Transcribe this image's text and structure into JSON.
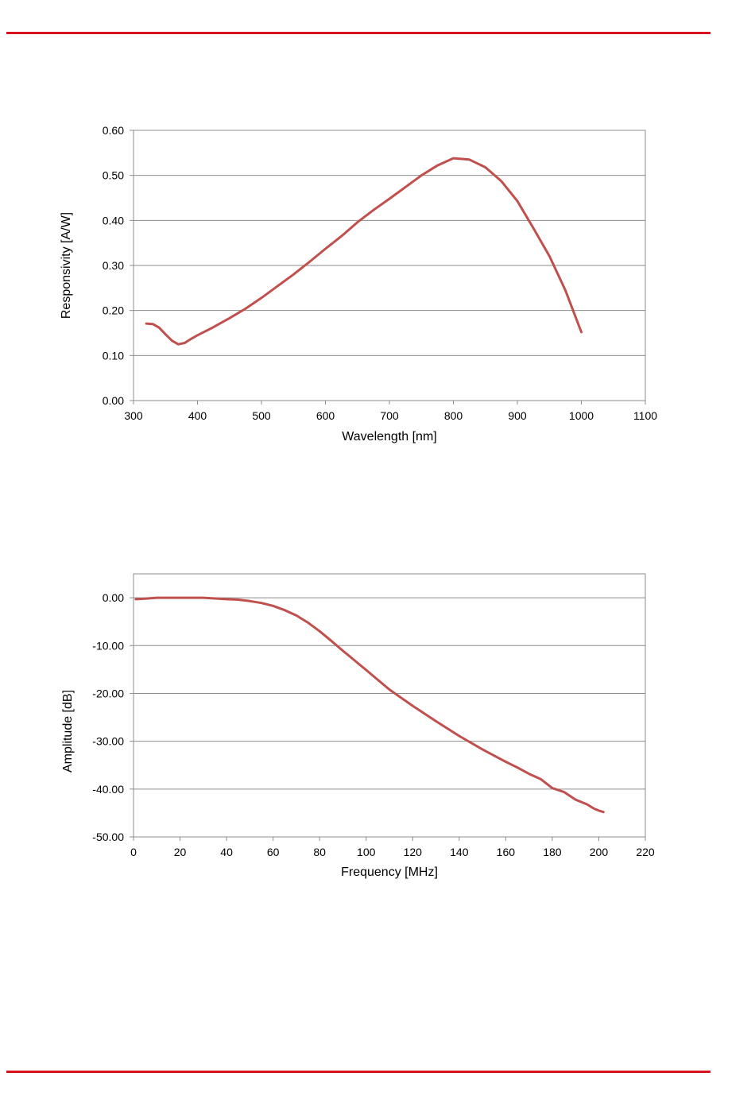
{
  "colors": {
    "rule": "#d9141e",
    "curve": "#c0504d",
    "grid": "#8c8c8c",
    "frame": "#8c8c8c"
  },
  "chart_data": [
    {
      "type": "line",
      "xlabel": "Wavelength [nm]",
      "ylabel": "Responsivity [A/W]",
      "xlim": [
        300,
        1100
      ],
      "ylim": [
        0,
        0.6
      ],
      "x_ticks": [
        300,
        400,
        500,
        600,
        700,
        800,
        900,
        1000,
        1100
      ],
      "x_tick_labels": [
        "300",
        "400",
        "500",
        "600",
        "700",
        "800",
        "900",
        "1000",
        "1100"
      ],
      "y_ticks": [
        0,
        0.1,
        0.2,
        0.3,
        0.4,
        0.5,
        0.6
      ],
      "y_tick_labels": [
        "0.00",
        "0.10",
        "0.20",
        "0.30",
        "0.40",
        "0.50",
        "0.60"
      ],
      "grid": "horizontal",
      "series": [
        {
          "x": [
            320,
            330,
            340,
            350,
            360,
            370,
            380,
            390,
            400,
            425,
            450,
            475,
            500,
            525,
            550,
            575,
            600,
            625,
            650,
            675,
            700,
            725,
            750,
            775,
            800,
            810,
            825,
            850,
            875,
            900,
            925,
            950,
            975,
            1000
          ],
          "y": [
            0.171,
            0.17,
            0.162,
            0.147,
            0.133,
            0.125,
            0.128,
            0.137,
            0.145,
            0.163,
            0.183,
            0.204,
            0.228,
            0.254,
            0.28,
            0.308,
            0.337,
            0.365,
            0.396,
            0.423,
            0.448,
            0.474,
            0.5,
            0.522,
            0.538,
            0.537,
            0.535,
            0.518,
            0.487,
            0.443,
            0.383,
            0.321,
            0.245,
            0.152
          ]
        }
      ]
    },
    {
      "type": "line",
      "xlabel": "Frequency [MHz]",
      "ylabel": "Amplitude [dB]",
      "xlim": [
        0,
        220
      ],
      "ylim": [
        -50,
        5
      ],
      "x_ticks": [
        0,
        20,
        40,
        60,
        80,
        100,
        120,
        140,
        160,
        180,
        200,
        220
      ],
      "x_tick_labels": [
        "0",
        "20",
        "40",
        "60",
        "80",
        "100",
        "120",
        "140",
        "160",
        "180",
        "200",
        "220"
      ],
      "y_ticks": [
        0,
        -10,
        -20,
        -30,
        -40,
        -50
      ],
      "y_tick_labels": [
        "0.00",
        "-10.00",
        "-20.00",
        "-30.00",
        "-40.00",
        "-50.00"
      ],
      "grid": "horizontal",
      "series": [
        {
          "x": [
            1,
            5,
            10,
            20,
            30,
            40,
            45,
            50,
            55,
            60,
            65,
            70,
            75,
            80,
            85,
            90,
            95,
            100,
            110,
            120,
            130,
            140,
            150,
            160,
            165,
            170,
            175,
            180,
            185,
            190,
            195,
            198,
            200,
            202
          ],
          "y": [
            -0.3,
            -0.2,
            0.0,
            0.0,
            0.0,
            -0.3,
            -0.4,
            -0.7,
            -1.1,
            -1.7,
            -2.6,
            -3.7,
            -5.2,
            -7.0,
            -9.0,
            -11.1,
            -13.1,
            -15.1,
            -19.2,
            -22.6,
            -25.8,
            -28.9,
            -31.7,
            -34.3,
            -35.5,
            -36.8,
            -37.9,
            -39.8,
            -40.6,
            -42.2,
            -43.2,
            -44.1,
            -44.5,
            -44.8
          ]
        }
      ]
    }
  ]
}
